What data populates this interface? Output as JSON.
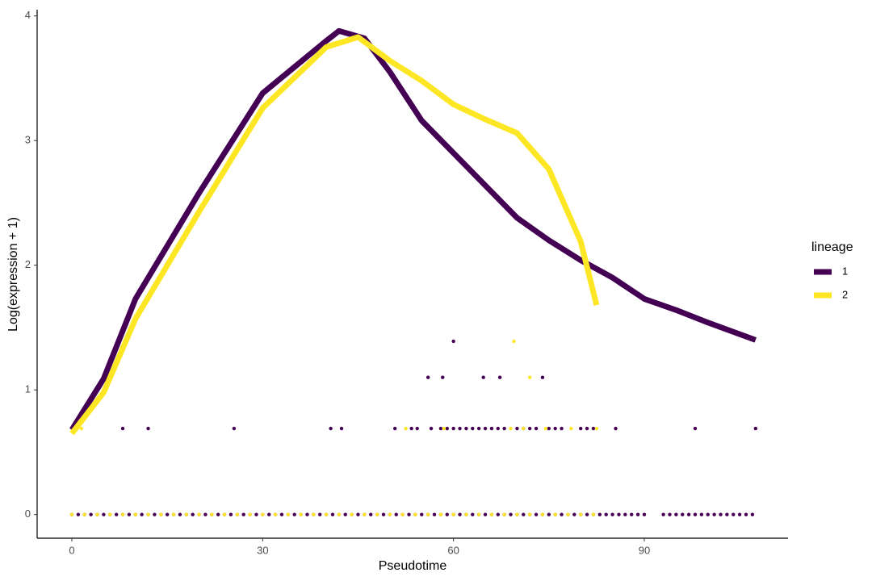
{
  "chart_data": {
    "type": "scatter",
    "x_label": "Pseudotime",
    "y_label": "Log(expression + 1)",
    "legend_title": "lineage",
    "xlim": [
      -5.46,
      112.6
    ],
    "ylim": [
      -0.19,
      4.05
    ],
    "xticks": [
      0,
      30,
      60,
      90
    ],
    "yticks": [
      0,
      1,
      2,
      3,
      4
    ],
    "grid": false,
    "points": [
      {
        "color": "#440154",
        "x": [
          8,
          12,
          25.5,
          40.7,
          42.4,
          50.8,
          53.4,
          54.3,
          56.5,
          58,
          59,
          60,
          61,
          62,
          63,
          64,
          65,
          66,
          67,
          68,
          70,
          71,
          72,
          73,
          75,
          76,
          77,
          80,
          81,
          82,
          85.5,
          98,
          107.5,
          56,
          58.3,
          64.7,
          67.3,
          74,
          60,
          0,
          1,
          2,
          3,
          4,
          5,
          6,
          7,
          8,
          9,
          10,
          11,
          12,
          13,
          14,
          15,
          16,
          17,
          18,
          19,
          20,
          21,
          22,
          23,
          24,
          25,
          26,
          27,
          28,
          29,
          30,
          31,
          32,
          33,
          34,
          35,
          36,
          37,
          38,
          39,
          40,
          41,
          42,
          43,
          44,
          45,
          46,
          47,
          48,
          49,
          50,
          51,
          52,
          53,
          54,
          55,
          56,
          57,
          58,
          59,
          60,
          61,
          62,
          63,
          64,
          65,
          66,
          67,
          68,
          69,
          70,
          71,
          72,
          73,
          74,
          75,
          76,
          77,
          78,
          79,
          80,
          81,
          82,
          83,
          84,
          85,
          86,
          87,
          88,
          89,
          90,
          93,
          94,
          95,
          96,
          97,
          98,
          99,
          100,
          101,
          102,
          103,
          104,
          105,
          106,
          107
        ],
        "values": [
          0.69,
          0.69,
          0.69,
          0.69,
          0.69,
          0.69,
          0.69,
          0.69,
          0.69,
          0.69,
          0.69,
          0.69,
          0.69,
          0.69,
          0.69,
          0.69,
          0.69,
          0.69,
          0.69,
          0.69,
          0.69,
          0.69,
          0.69,
          0.69,
          0.69,
          0.69,
          0.69,
          0.69,
          0.69,
          0.69,
          0.69,
          0.69,
          0.69,
          1.1,
          1.1,
          1.1,
          1.1,
          1.1,
          1.39,
          0,
          0,
          0,
          0,
          0,
          0,
          0,
          0,
          0,
          0,
          0,
          0,
          0,
          0,
          0,
          0,
          0,
          0,
          0,
          0,
          0,
          0,
          0,
          0,
          0,
          0,
          0,
          0,
          0,
          0,
          0,
          0,
          0,
          0,
          0,
          0,
          0,
          0,
          0,
          0,
          0,
          0,
          0,
          0,
          0,
          0,
          0,
          0,
          0,
          0,
          0,
          0,
          0,
          0,
          0,
          0,
          0,
          0,
          0,
          0,
          0,
          0,
          0,
          0,
          0,
          0,
          0,
          0,
          0,
          0,
          0,
          0,
          0,
          0,
          0,
          0,
          0,
          0,
          0,
          0,
          0,
          0,
          0,
          0,
          0,
          0,
          0,
          0,
          0,
          0,
          0,
          0,
          0,
          0,
          0,
          0,
          0,
          0,
          0,
          0,
          0,
          0,
          0,
          0,
          0,
          0
        ]
      },
      {
        "color": "#fde725",
        "x": [
          1.5,
          52.5,
          58.5,
          69,
          71,
          74.5,
          78.5,
          82.5,
          72,
          69.5,
          0,
          2,
          4,
          6,
          8,
          10,
          12,
          14,
          16,
          18,
          20,
          22,
          24,
          26,
          28,
          30,
          32,
          34,
          36,
          38,
          40,
          42,
          44,
          46,
          48,
          50,
          52,
          54,
          56,
          58,
          60,
          62,
          64,
          66,
          68,
          70,
          72,
          74,
          76,
          78,
          80,
          82
        ],
        "values": [
          0.69,
          0.69,
          0.69,
          0.69,
          0.69,
          0.69,
          0.69,
          0.69,
          1.1,
          1.39,
          0,
          0,
          0,
          0,
          0,
          0,
          0,
          0,
          0,
          0,
          0,
          0,
          0,
          0,
          0,
          0,
          0,
          0,
          0,
          0,
          0,
          0,
          0,
          0,
          0,
          0,
          0,
          0,
          0,
          0,
          0,
          0,
          0,
          0,
          0,
          0,
          0,
          0,
          0,
          0,
          0,
          0
        ]
      }
    ],
    "series": [
      {
        "name": "1",
        "color": "#440154",
        "x": [
          0,
          5,
          10,
          20,
          30,
          40,
          42,
          46,
          50,
          55,
          60,
          65,
          70,
          75,
          80,
          85,
          90,
          95,
          100,
          107.5
        ],
        "values": [
          0.68,
          1.09,
          1.73,
          2.58,
          3.38,
          3.8,
          3.88,
          3.82,
          3.55,
          3.16,
          2.9,
          2.64,
          2.38,
          2.2,
          2.04,
          1.9,
          1.73,
          1.64,
          1.54,
          1.4
        ]
      },
      {
        "name": "2",
        "color": "#fde725",
        "x": [
          0,
          5,
          10,
          20,
          30,
          40,
          45,
          50,
          55,
          60,
          65,
          70,
          75,
          80,
          82.5
        ],
        "values": [
          0.65,
          0.98,
          1.57,
          2.43,
          3.26,
          3.75,
          3.83,
          3.64,
          3.48,
          3.29,
          3.17,
          3.06,
          2.77,
          2.19,
          1.68
        ]
      }
    ]
  }
}
